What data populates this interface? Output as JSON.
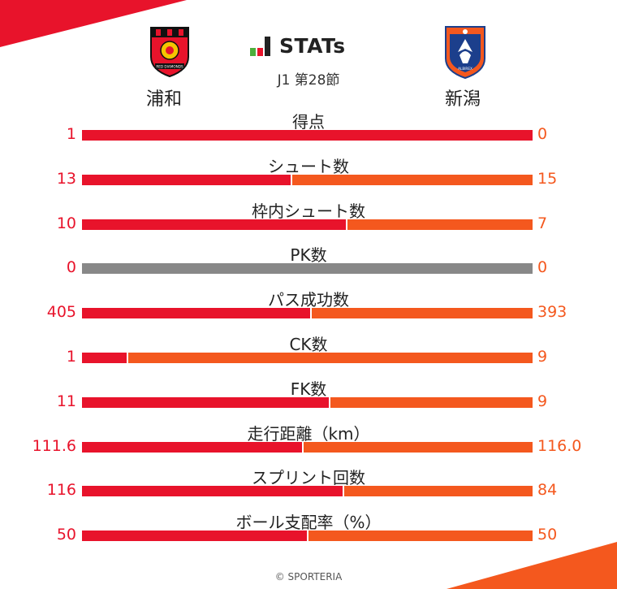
{
  "header": {
    "brand": "STATs",
    "subtitle": "J1 第28節",
    "home_team": "浦和",
    "away_team": "新潟",
    "home_crest_text": "RED DIAMONDS",
    "away_crest_text": "ALBIREX"
  },
  "colors": {
    "home": "#e8132b",
    "away": "#f4581e",
    "neutral": "#888888"
  },
  "chart_data": {
    "type": "bar",
    "orientation": "horizontal-diverging",
    "series": [
      {
        "name": "浦和",
        "values": [
          1,
          13,
          10,
          0,
          405,
          1,
          11,
          111.6,
          116,
          50
        ]
      },
      {
        "name": "新潟",
        "values": [
          0,
          15,
          7,
          0,
          393,
          9,
          9,
          116.0,
          84,
          50
        ]
      }
    ],
    "rows": [
      {
        "label": "得点",
        "home": "1",
        "away": "0",
        "home_value": 1,
        "away_value": 0
      },
      {
        "label": "シュート数",
        "home": "13",
        "away": "15",
        "home_value": 13,
        "away_value": 15
      },
      {
        "label": "枠内シュート数",
        "home": "10",
        "away": "7",
        "home_value": 10,
        "away_value": 7
      },
      {
        "label": "PK数",
        "home": "0",
        "away": "0",
        "home_value": 0,
        "away_value": 0
      },
      {
        "label": "パス成功数",
        "home": "405",
        "away": "393",
        "home_value": 405,
        "away_value": 393
      },
      {
        "label": "CK数",
        "home": "1",
        "away": "9",
        "home_value": 1,
        "away_value": 9
      },
      {
        "label": "FK数",
        "home": "11",
        "away": "9",
        "home_value": 11,
        "away_value": 9
      },
      {
        "label": "走行距離（km）",
        "home": "111.6",
        "away": "116.0",
        "home_value": 111.6,
        "away_value": 116.0
      },
      {
        "label": "スプリント回数",
        "home": "116",
        "away": "84",
        "home_value": 116,
        "away_value": 84
      },
      {
        "label": "ボール支配率（%）",
        "home": "50",
        "away": "50",
        "home_value": 50,
        "away_value": 50
      }
    ]
  },
  "footer": {
    "copyright": "© SPORTERIA"
  }
}
